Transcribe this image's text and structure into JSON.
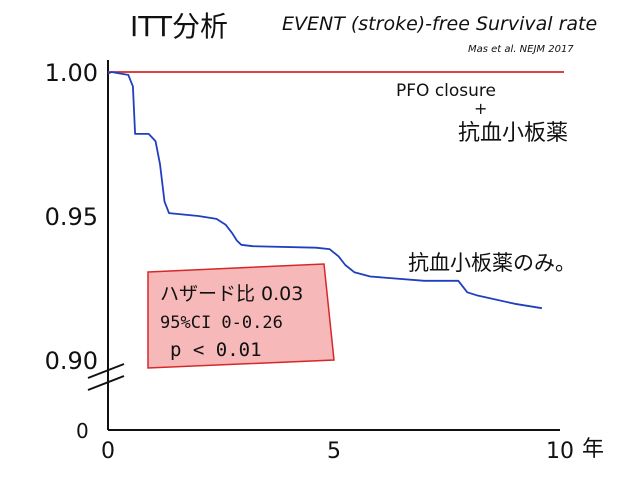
{
  "chart_data": {
    "type": "line",
    "title": "ITT分析",
    "subtitle": "EVENT (stroke)-free Survival rate",
    "source": "Mas et al. NEJM 2017",
    "x_unit": "年",
    "xlim": [
      0,
      10
    ],
    "ylim": [
      0.9,
      1.0
    ],
    "x_ticks": [
      {
        "value": 0,
        "label": "0"
      },
      {
        "value": 5,
        "label": "5"
      },
      {
        "value": 10,
        "label": "10"
      }
    ],
    "y_ticks": [
      {
        "value": 1.0,
        "label": "1.00"
      },
      {
        "value": 0.95,
        "label": "0.95"
      },
      {
        "value": 0.9,
        "label": "0.90"
      }
    ],
    "y_origin_label": "0",
    "series": [
      {
        "name": "PFO closure + 抗血小板薬",
        "color": "#d62828",
        "x": [
          0,
          10
        ],
        "y": [
          1.0,
          1.0
        ]
      },
      {
        "name": "抗血小板薬のみ。",
        "color": "#1f3fbf",
        "x": [
          0,
          0.08,
          0.25,
          0.45,
          0.55,
          0.6,
          0.9,
          1.05,
          1.15,
          1.25,
          1.35,
          2.0,
          2.4,
          2.6,
          2.75,
          2.85,
          2.95,
          3.2,
          4.6,
          4.9,
          5.1,
          5.25,
          5.45,
          5.8,
          7.0,
          7.75,
          7.95,
          8.15,
          9.0,
          9.6
        ],
        "y": [
          0.9995,
          1.0,
          0.9995,
          0.999,
          0.995,
          0.9785,
          0.9785,
          0.976,
          0.968,
          0.955,
          0.951,
          0.95,
          0.949,
          0.947,
          0.944,
          0.9415,
          0.94,
          0.9395,
          0.939,
          0.9385,
          0.936,
          0.933,
          0.9305,
          0.929,
          0.9275,
          0.9275,
          0.9235,
          0.9225,
          0.9195,
          0.918
        ]
      }
    ],
    "annotation_box": {
      "lines": [
        "ハザード比 0.03",
        "95%CI 0-0.26",
        "p < 0.01"
      ],
      "fill": "#f6b8b8",
      "stroke": "#d62828"
    },
    "legend_placement": "inline labels at right",
    "grid": false,
    "axis_break": true
  }
}
